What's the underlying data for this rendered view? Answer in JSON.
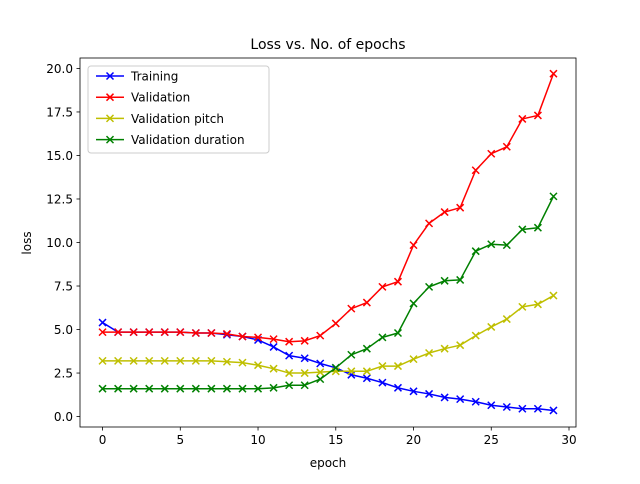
{
  "chart_data": {
    "type": "line",
    "title": "Loss vs. No. of epochs",
    "xlabel": "epoch",
    "ylabel": "loss",
    "xlim": [
      -1.45,
      30.45
    ],
    "ylim": [
      -0.6,
      20.6
    ],
    "xticks": [
      0,
      5,
      10,
      15,
      20,
      25,
      30
    ],
    "xtick_labels": [
      "0",
      "5",
      "10",
      "15",
      "20",
      "25",
      "30"
    ],
    "yticks": [
      0,
      2.5,
      5,
      7.5,
      10,
      12.5,
      15,
      17.5,
      20
    ],
    "ytick_labels": [
      "0.0",
      "2.5",
      "5.0",
      "7.5",
      "10.0",
      "12.5",
      "15.0",
      "17.5",
      "20.0"
    ],
    "grid": false,
    "legend_position": "top-left",
    "marker": "x",
    "x": [
      0,
      1,
      2,
      3,
      4,
      5,
      6,
      7,
      8,
      9,
      10,
      11,
      12,
      13,
      14,
      15,
      16,
      17,
      18,
      19,
      20,
      21,
      22,
      23,
      24,
      25,
      26,
      27,
      28,
      29
    ],
    "series": [
      {
        "name": "Training",
        "color": "#0000ff",
        "values": [
          5.4,
          4.85,
          4.85,
          4.85,
          4.85,
          4.85,
          4.8,
          4.8,
          4.7,
          4.6,
          4.4,
          4.0,
          3.5,
          3.35,
          3.05,
          2.8,
          2.4,
          2.2,
          1.95,
          1.65,
          1.45,
          1.3,
          1.1,
          1.0,
          0.85,
          0.65,
          0.55,
          0.45,
          0.45,
          0.35
        ]
      },
      {
        "name": "Validation",
        "color": "#ff0000",
        "values": [
          4.85,
          4.85,
          4.85,
          4.85,
          4.85,
          4.85,
          4.8,
          4.8,
          4.75,
          4.6,
          4.55,
          4.45,
          4.3,
          4.35,
          4.65,
          5.35,
          6.2,
          6.55,
          7.45,
          7.75,
          9.85,
          11.1,
          11.75,
          12.0,
          14.15,
          15.1,
          15.5,
          17.1,
          17.3,
          19.7
        ]
      },
      {
        "name": "Validation pitch",
        "color": "#bfbf00",
        "values": [
          3.2,
          3.2,
          3.2,
          3.2,
          3.2,
          3.2,
          3.2,
          3.2,
          3.15,
          3.1,
          2.95,
          2.75,
          2.5,
          2.5,
          2.55,
          2.6,
          2.6,
          2.6,
          2.9,
          2.9,
          3.3,
          3.65,
          3.9,
          4.1,
          4.65,
          5.15,
          5.6,
          6.3,
          6.45,
          6.95
        ]
      },
      {
        "name": "Validation duration",
        "color": "#008000",
        "values": [
          1.6,
          1.6,
          1.6,
          1.6,
          1.6,
          1.6,
          1.6,
          1.6,
          1.6,
          1.6,
          1.6,
          1.65,
          1.8,
          1.8,
          2.15,
          2.8,
          3.55,
          3.9,
          4.55,
          4.8,
          6.5,
          7.45,
          7.8,
          7.85,
          9.5,
          9.9,
          9.85,
          10.75,
          10.85,
          12.65
        ]
      }
    ]
  }
}
